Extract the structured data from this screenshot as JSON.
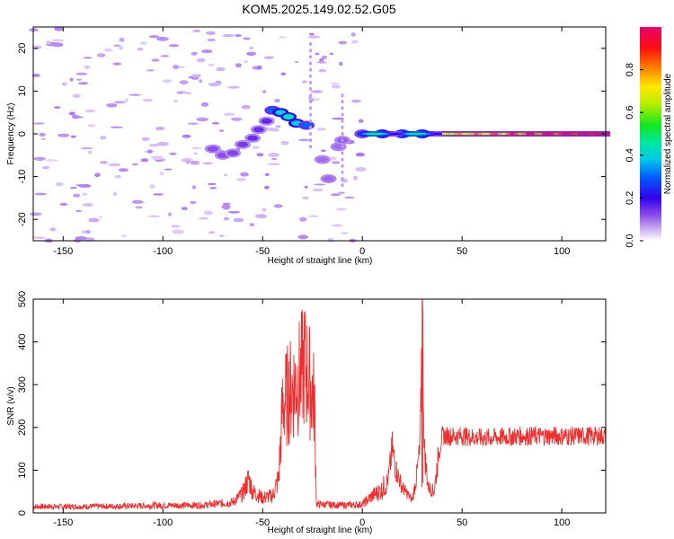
{
  "title": "KOM5.2025.149.02.52.G05",
  "chart_data": [
    {
      "type": "heatmap",
      "xlabel": "Height of straight line (km)",
      "ylabel": "Frequency (Hz)",
      "xlim": [
        -165,
        122
      ],
      "ylim": [
        -25,
        25
      ],
      "xticks": [
        -150,
        -100,
        -50,
        0,
        50,
        100
      ],
      "yticks": [
        -20,
        -10,
        0,
        10,
        20
      ],
      "colorbar": {
        "label": "Normalized spectral amplitude",
        "range": [
          0,
          1
        ],
        "ticks": [
          0.0,
          0.2,
          0.4,
          0.6,
          0.8
        ],
        "tick_labels": [
          "0.0",
          "0.2",
          "0.4",
          "0.6",
          "0.8"
        ]
      },
      "ridge": [
        {
          "x": -75,
          "f": -3.5,
          "amp": 0.12
        },
        {
          "x": -70,
          "f": -5.0,
          "amp": 0.12
        },
        {
          "x": -65,
          "f": -4.5,
          "amp": 0.13
        },
        {
          "x": -60,
          "f": -2.5,
          "amp": 0.14
        },
        {
          "x": -55,
          "f": -1.0,
          "amp": 0.15
        },
        {
          "x": -52,
          "f": 1.0,
          "amp": 0.15
        },
        {
          "x": -48,
          "f": 3.0,
          "amp": 0.16
        },
        {
          "x": -45,
          "f": 5.5,
          "amp": 0.3
        },
        {
          "x": -41,
          "f": 5.0,
          "amp": 0.4
        },
        {
          "x": -37,
          "f": 4.0,
          "amp": 0.45
        },
        {
          "x": -33,
          "f": 2.5,
          "amp": 0.4
        },
        {
          "x": -28,
          "f": 2.0,
          "amp": 0.3
        },
        {
          "x": -20,
          "f": -6.0,
          "amp": 0.1
        },
        {
          "x": -17,
          "f": -10.5,
          "amp": 0.1
        },
        {
          "x": -12,
          "f": -3.0,
          "amp": 0.1
        },
        {
          "x": -10,
          "f": -1.5,
          "amp": 0.11
        },
        {
          "x": 0,
          "f": 0.0,
          "amp": 0.25
        },
        {
          "x": 10,
          "f": 0.0,
          "amp": 0.45
        },
        {
          "x": 20,
          "f": 0.0,
          "amp": 0.5
        },
        {
          "x": 30,
          "f": 0.0,
          "amp": 0.45
        },
        {
          "x": 40,
          "f": 0.0,
          "amp": 0.35
        },
        {
          "x": 60,
          "f": 0.0,
          "amp": 0.75
        },
        {
          "x": 80,
          "f": 0.0,
          "amp": 0.85
        },
        {
          "x": 100,
          "f": 0.0,
          "amp": 0.9
        },
        {
          "x": 120,
          "f": 0.0,
          "amp": 0.95
        }
      ]
    },
    {
      "type": "line",
      "xlabel": "Height of straight line (km)",
      "ylabel": "SNR (v/v)",
      "xlim": [
        -165,
        122
      ],
      "ylim": [
        0,
        500
      ],
      "xticks": [
        -150,
        -100,
        -50,
        0,
        50,
        100
      ],
      "yticks": [
        0,
        100,
        200,
        300,
        400,
        500
      ],
      "color": "#ee2e2e",
      "series": [
        {
          "x": [
            -165,
            -140,
            -120,
            -100,
            -80,
            -65,
            -60,
            -57,
            -55,
            -50,
            -45,
            -42,
            -40,
            -37,
            -34,
            -31,
            -29,
            -26,
            -24,
            -23,
            -20,
            -10,
            0,
            5,
            10,
            13,
            15,
            17,
            20,
            25,
            27,
            29,
            30,
            31,
            33,
            36,
            38,
            40,
            50,
            60,
            80,
            100,
            122
          ],
          "values": [
            15,
            15,
            16,
            18,
            18,
            25,
            45,
            80,
            50,
            35,
            40,
            80,
            250,
            280,
            300,
            320,
            350,
            300,
            260,
            20,
            20,
            18,
            20,
            40,
            55,
            80,
            150,
            100,
            60,
            30,
            80,
            150,
            500,
            150,
            60,
            50,
            130,
            180,
            180,
            175,
            180,
            180,
            180
          ]
        }
      ]
    }
  ]
}
